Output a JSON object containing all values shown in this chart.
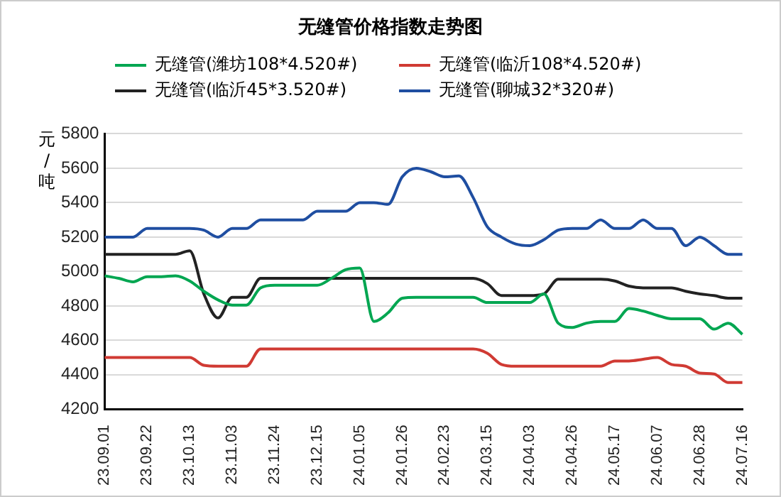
{
  "chart_data": {
    "type": "line",
    "title": "无缝管价格指数走势图",
    "ylabel": "元/吨",
    "categories": [
      "23.09.01",
      null,
      null,
      "23.09.22",
      null,
      null,
      "23.10.13",
      null,
      null,
      "23.11.03",
      null,
      null,
      "23.11.24",
      null,
      null,
      "23.12.15",
      null,
      null,
      "24.01.05",
      null,
      null,
      "24.01.26",
      null,
      null,
      "24.02.23",
      null,
      null,
      "24.03.15",
      null,
      null,
      "24.04.03",
      null,
      null,
      "24.04.26",
      null,
      null,
      "24.05.17",
      null,
      null,
      "24.06.07",
      null,
      null,
      "24.06.28",
      null,
      null,
      "24.07.16"
    ],
    "series": [
      {
        "name": "无缝管(潍坊108*4.520#)",
        "color": "#00a651",
        "values": [
          4975,
          4960,
          4940,
          4970,
          4970,
          4975,
          4945,
          4885,
          4835,
          4805,
          4805,
          4905,
          4920,
          4920,
          4920,
          4920,
          4960,
          5010,
          5020,
          4710,
          4760,
          4845,
          4850,
          4850,
          4850,
          4850,
          4850,
          4820,
          4820,
          4820,
          4820,
          4870,
          4700,
          4675,
          4700,
          4710,
          4710,
          4785,
          4770,
          4745,
          4725,
          4725,
          4725,
          4665,
          4700,
          4635
        ]
      },
      {
        "name": "无缝管(临沂108*4.520#)",
        "color": "#d03a33",
        "values": [
          4500,
          4500,
          4500,
          4500,
          4500,
          4500,
          4500,
          4455,
          4450,
          4450,
          4450,
          4550,
          4550,
          4550,
          4550,
          4550,
          4550,
          4550,
          4550,
          4550,
          4550,
          4550,
          4550,
          4550,
          4550,
          4550,
          4550,
          4525,
          4460,
          4450,
          4450,
          4450,
          4450,
          4450,
          4450,
          4450,
          4480,
          4480,
          4490,
          4500,
          4460,
          4450,
          4410,
          4405,
          4355,
          4355
        ]
      },
      {
        "name": "无缝管(临沂45*3.520#)",
        "color": "#222222",
        "values": [
          5100,
          5100,
          5100,
          5100,
          5100,
          5100,
          5120,
          4870,
          4730,
          4850,
          4850,
          4960,
          4960,
          4960,
          4960,
          4960,
          4960,
          4960,
          4960,
          4960,
          4960,
          4960,
          4960,
          4960,
          4960,
          4960,
          4960,
          4930,
          4860,
          4860,
          4860,
          4870,
          4955,
          4955,
          4955,
          4955,
          4945,
          4915,
          4905,
          4905,
          4905,
          4885,
          4870,
          4860,
          4845,
          4845
        ]
      },
      {
        "name": "无缝管(聊城32*320#)",
        "color": "#1f4ea1",
        "values": [
          5200,
          5200,
          5200,
          5250,
          5250,
          5250,
          5250,
          5240,
          5200,
          5250,
          5250,
          5300,
          5300,
          5300,
          5300,
          5350,
          5350,
          5350,
          5400,
          5400,
          5390,
          5550,
          5600,
          5580,
          5550,
          5555,
          5430,
          5260,
          5200,
          5160,
          5150,
          5185,
          5240,
          5250,
          5250,
          5300,
          5250,
          5250,
          5300,
          5250,
          5250,
          5150,
          5200,
          5150,
          5100,
          5100
        ]
      }
    ],
    "ylim": [
      4200,
      5800
    ],
    "yticks": [
      4200,
      4400,
      4600,
      4800,
      5000,
      5200,
      5400,
      5600,
      5800
    ],
    "grid": "y",
    "legend": "top",
    "marker": "none",
    "line_style": "solid"
  }
}
